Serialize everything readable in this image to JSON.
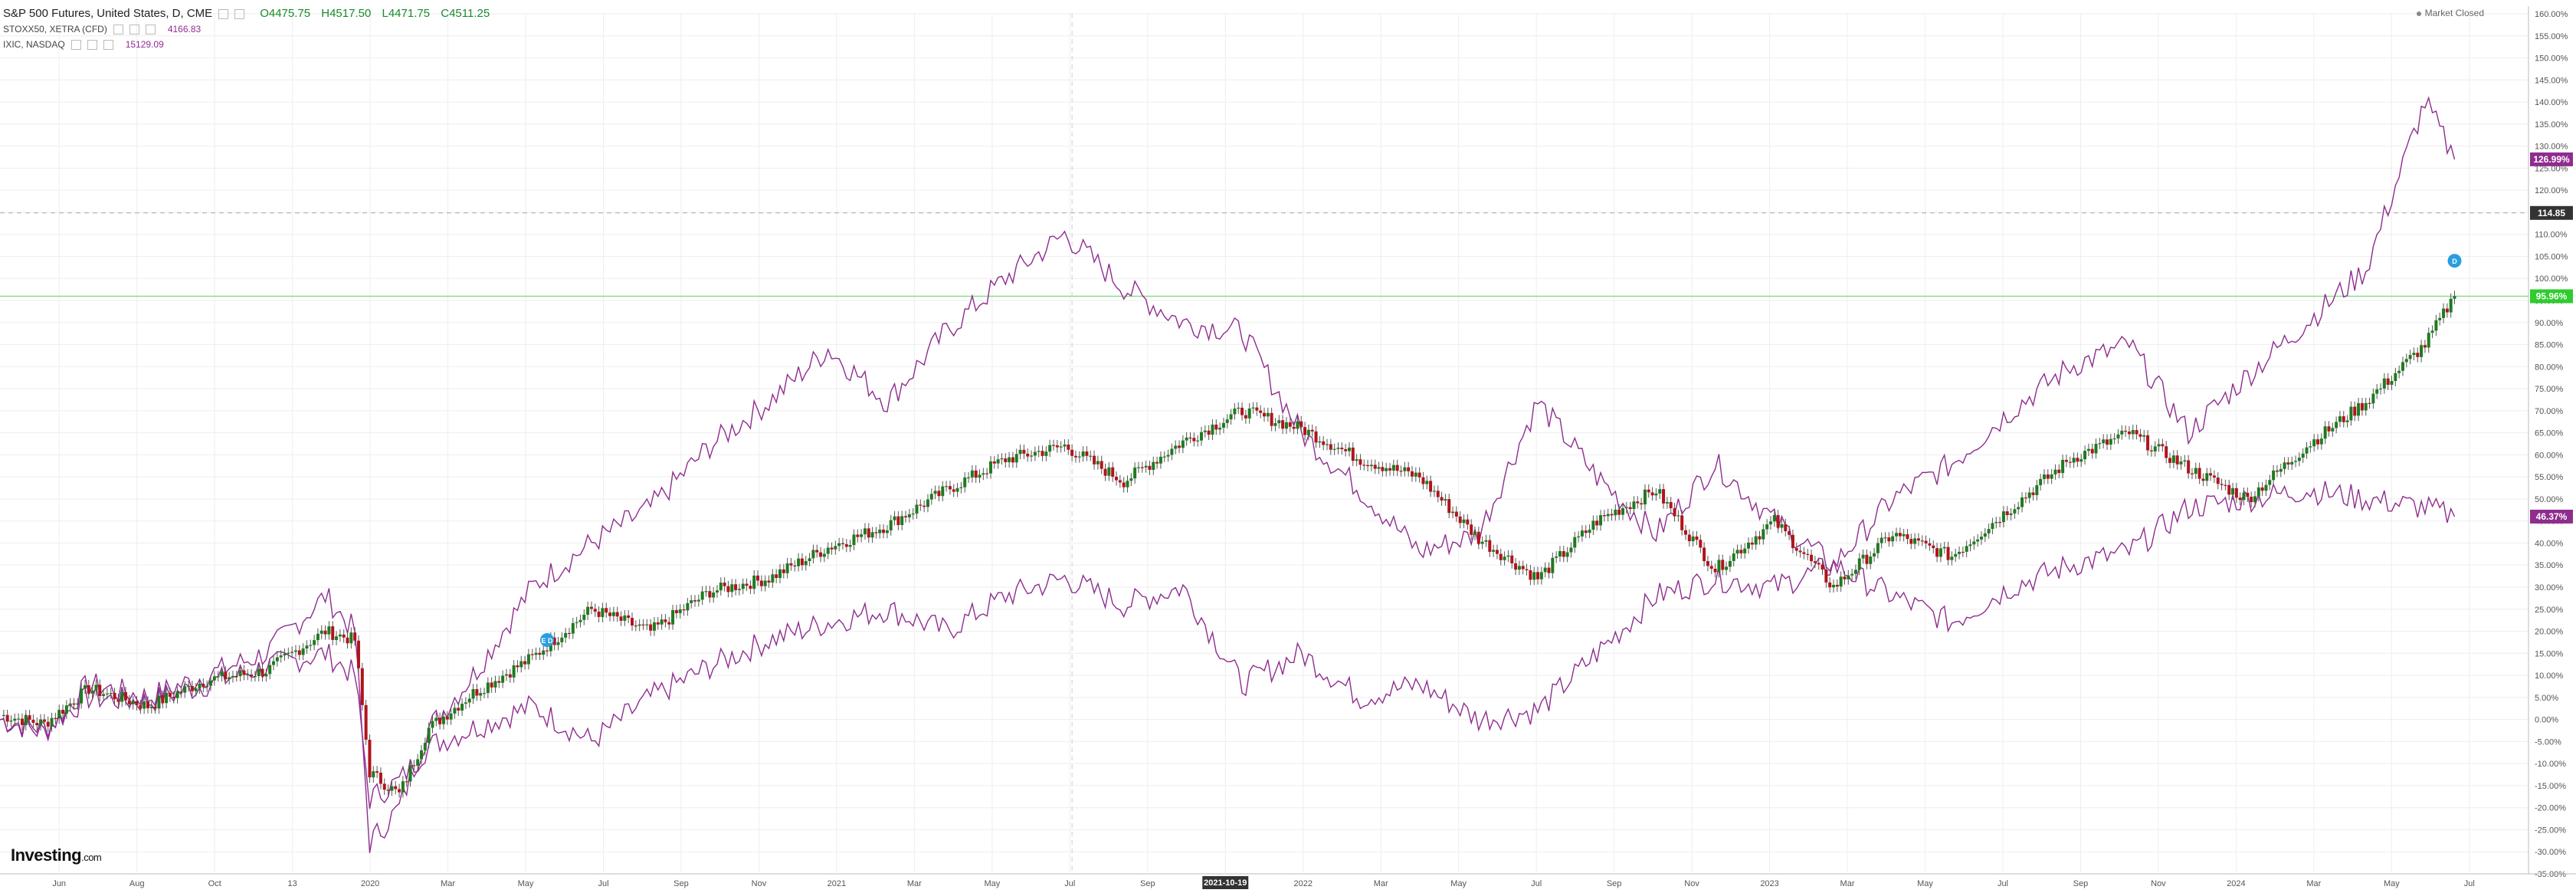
{
  "header": {
    "title": "S&P 500 Futures, United States, D, CME",
    "ohlc": {
      "open": "O4475.75",
      "high": "H4517.50",
      "low": "L4471.75",
      "close": "C4511.25"
    },
    "series2": {
      "label": "STOXX50, XETRA (CFD)",
      "value": "4166.83"
    },
    "series3": {
      "label": "IXIC, NASDAQ",
      "value": "15129.09"
    },
    "market_status": "Market Closed",
    "logo_text": "Investing",
    "logo_suffix": ".com"
  },
  "colors": {
    "up": "#1f7a1f",
    "down": "#b0141c",
    "compare": "#8e2d8e",
    "badge_green": "#2ecc2e",
    "badge_dark": "#333333",
    "hline": "#88dd88",
    "grid": "#eeeeee"
  },
  "chart_data": {
    "type": "line",
    "y_axis": {
      "min": -35,
      "max": 160,
      "step": 5,
      "unit": "%",
      "side": "right"
    },
    "x_ticks": [
      "Jun",
      "Aug",
      "Oct",
      "13",
      "2020",
      "Mar",
      "May",
      "Jul",
      "Sep",
      "Nov",
      "2021",
      "Mar",
      "May",
      "Jul",
      "Sep",
      "2021-10-19",
      "2022",
      "Mar",
      "May",
      "Jul",
      "Sep",
      "Nov",
      "2023",
      "Mar",
      "May",
      "Jul",
      "Sep",
      "Nov",
      "2024",
      "Mar",
      "May",
      "Jul"
    ],
    "highlighted_x_label": "2021-10-19",
    "series": [
      {
        "name": "S&P 500 Futures",
        "style": "candlestick",
        "x": [
          0,
          3,
          6,
          10,
          14,
          18,
          22,
          24,
          25,
          27,
          29,
          32,
          36,
          40,
          44,
          48,
          52,
          56,
          60,
          64,
          68,
          72,
          76,
          80,
          84,
          88,
          92,
          96,
          100,
          104,
          108,
          112,
          116,
          120,
          124,
          128,
          132,
          136,
          140,
          144,
          148,
          152,
          156,
          160,
          164,
          166
        ],
        "values": [
          1,
          -1,
          7,
          3,
          9,
          11,
          20,
          18,
          -12,
          -17,
          -2,
          6,
          14,
          25,
          20,
          29,
          32,
          39,
          44,
          52,
          59,
          62,
          54,
          63,
          70,
          66,
          59,
          55,
          41,
          32,
          45,
          52,
          34,
          45,
          30,
          42,
          37,
          48,
          59,
          65,
          57,
          50,
          62,
          72,
          85,
          96
        ]
      },
      {
        "name": "IXIC, NASDAQ",
        "style": "line",
        "x": [
          0,
          3,
          6,
          10,
          14,
          18,
          22,
          24,
          25,
          27,
          29,
          32,
          36,
          40,
          44,
          48,
          52,
          56,
          60,
          64,
          68,
          72,
          76,
          80,
          84,
          88,
          92,
          96,
          100,
          104,
          108,
          112,
          116,
          120,
          124,
          128,
          132,
          136,
          140,
          144,
          148,
          152,
          156,
          160,
          164,
          166
        ],
        "values": [
          0,
          -3,
          8,
          5,
          10,
          15,
          28,
          20,
          -28,
          -20,
          -2,
          10,
          30,
          40,
          48,
          62,
          72,
          84,
          72,
          88,
          100,
          110,
          98,
          90,
          88,
          65,
          52,
          38,
          42,
          72,
          55,
          42,
          58,
          45,
          35,
          50,
          58,
          70,
          80,
          85,
          65,
          78,
          90,
          102,
          140,
          127
        ]
      },
      {
        "name": "STOXX50, XETRA (CFD)",
        "style": "line",
        "x": [
          0,
          3,
          6,
          10,
          14,
          18,
          22,
          24,
          25,
          27,
          29,
          32,
          36,
          40,
          44,
          48,
          52,
          56,
          60,
          64,
          68,
          72,
          76,
          80,
          84,
          88,
          92,
          96,
          100,
          104,
          108,
          112,
          116,
          120,
          124,
          128,
          132,
          136,
          140,
          144,
          148,
          152,
          156,
          160,
          164,
          166
        ],
        "values": [
          0,
          -2,
          5,
          4,
          8,
          12,
          15,
          10,
          -18,
          -14,
          -6,
          -2,
          3,
          -5,
          5,
          12,
          18,
          22,
          25,
          20,
          28,
          32,
          26,
          30,
          8,
          15,
          5,
          8,
          0,
          2,
          15,
          28,
          32,
          30,
          35,
          28,
          22,
          30,
          35,
          38,
          48,
          50,
          52,
          50,
          48,
          46
        ]
      }
    ],
    "last_values": {
      "IXIC, NASDAQ": "126.99%",
      "S&P 500 Futures": "95.96%",
      "STOXX50, XETRA (CFD)": "46.37%"
    },
    "reference_line": {
      "value": 95.96,
      "label": "95.96%"
    },
    "crosshair": {
      "y": 114.85,
      "label": "114.85",
      "x": 72.5
    },
    "events": [
      {
        "x": 37,
        "y": 18,
        "label": "E D"
      },
      {
        "x": 166,
        "y": 104,
        "label": "D"
      }
    ]
  }
}
